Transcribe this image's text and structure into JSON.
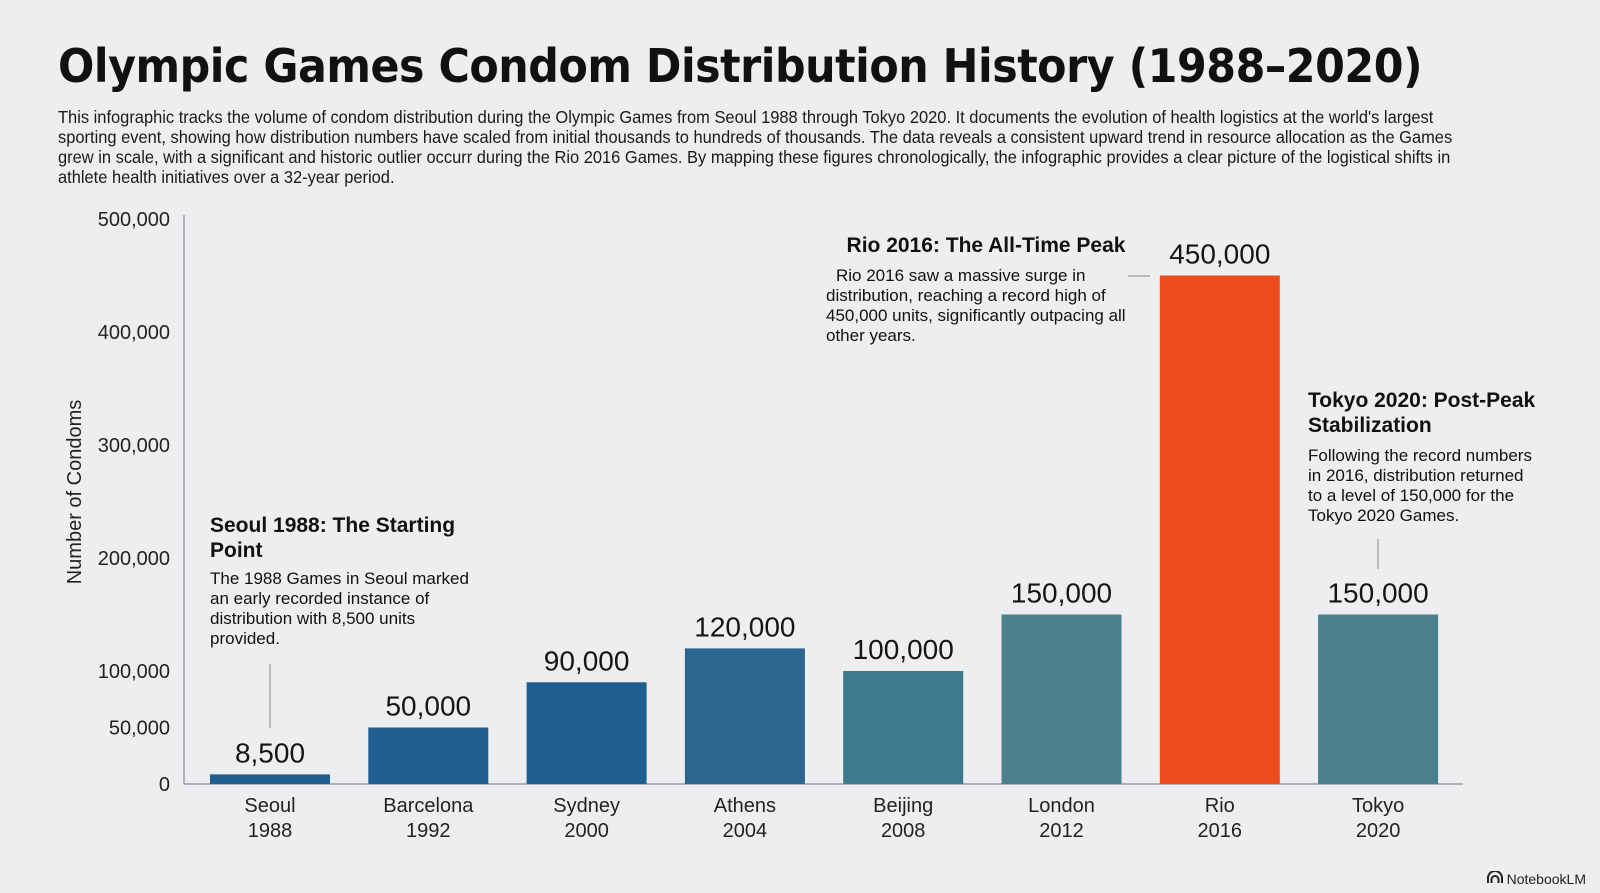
{
  "title": "Olympic Games Condom Distribution History (1988–2020)",
  "subtitle": "This infographic tracks the volume of condom distribution during the Olympic Games from Seoul 1988 through Tokyo 2020. It documents the evolution of health logistics at the world's largest sporting event, showing how distribution numbers have scaled from initial thousands to hundreds of thousands. The data reveals a consistent upward trend in resource allocation as the Games grew in scale, with a significant and historic outlier occurr during the Rio 2016 Games. By mapping these figures chronologically, the infographic provides a clear picture of the logistical shifts in athlete health initiatives over a 32-year period.",
  "chart_data": {
    "type": "bar",
    "title": "Olympic Games Condom Distribution History (1988–2020)",
    "xlabel": "",
    "ylabel": "Number of Condoms",
    "ylim": [
      0,
      500000
    ],
    "yticks": [
      0,
      50000,
      100000,
      200000,
      300000,
      400000,
      500000
    ],
    "ytick_labels": [
      "0",
      "50,000",
      "100,000",
      "200,000",
      "300,000",
      "400,000",
      "500,000"
    ],
    "grid": false,
    "categories": [
      {
        "city": "Seoul",
        "year": "1988"
      },
      {
        "city": "Barcelona",
        "year": "1992"
      },
      {
        "city": "Sydney",
        "year": "2000"
      },
      {
        "city": "Athens",
        "year": "2004"
      },
      {
        "city": "Beijing",
        "year": "2008"
      },
      {
        "city": "London",
        "year": "2012"
      },
      {
        "city": "Rio",
        "year": "2016"
      },
      {
        "city": "Tokyo",
        "year": "2020"
      }
    ],
    "values": [
      8500,
      50000,
      90000,
      120000,
      100000,
      150000,
      450000,
      150000
    ],
    "value_labels": [
      "8,500",
      "50,000",
      "90,000",
      "120,000",
      "100,000",
      "150,000",
      "450,000",
      "150,000"
    ],
    "colors": [
      "#1f5f8f",
      "#1f5f8f",
      "#1f5f8f",
      "#2a6690",
      "#3e7a8d",
      "#4a7f8c",
      "#ee4c1f",
      "#4a7f8c"
    ],
    "annotations": [
      {
        "target": "Seoul 1988",
        "title": "Seoul 1988: The Starting Point",
        "body": "The 1988 Games in Seoul marked an early recorded instance of distribution with 8,500 units provided."
      },
      {
        "target": "Rio 2016",
        "title": "Rio 2016: The All-Time Peak",
        "body": "Rio 2016 saw a massive surge in distribution, reaching a record high of 450,000 units, significantly outpacing all other years."
      },
      {
        "target": "Tokyo 2020",
        "title": "Tokyo 2020: Post-Peak Stabilization",
        "body": "Following the record numbers in 2016, distribution returned to a level of 150,000 for the Tokyo 2020 Games."
      }
    ]
  },
  "brand": {
    "name": "NotebookLM",
    "icon": "notebooklm-logo-icon"
  }
}
